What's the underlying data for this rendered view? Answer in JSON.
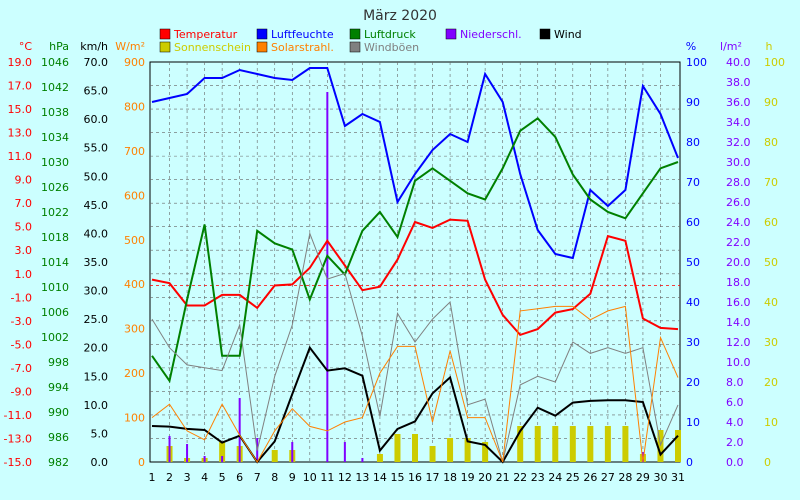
{
  "chart_data": {
    "type": "line",
    "title": "März 2020",
    "x": [
      1,
      2,
      3,
      4,
      5,
      6,
      7,
      8,
      9,
      10,
      11,
      12,
      13,
      14,
      15,
      16,
      17,
      18,
      19,
      20,
      21,
      22,
      23,
      24,
      25,
      26,
      27,
      28,
      29,
      30,
      31
    ],
    "axes": [
      {
        "id": "temp",
        "unit": "°C",
        "color": "#ff0000",
        "min": -15.0,
        "max": 19.0,
        "ticks": [
          "19.0",
          "17.0",
          "15.0",
          "13.0",
          "11.0",
          "9.0",
          "7.0",
          "5.0",
          "3.0",
          "1.0",
          "-1.0",
          "-3.0",
          "-5.0",
          "-7.0",
          "-9.0",
          "-11.0",
          "-13.0",
          "-15.0"
        ]
      },
      {
        "id": "pressure",
        "unit": "hPa",
        "color": "#008000",
        "min": 982,
        "max": 1046,
        "ticks": [
          "1046",
          "1042",
          "1038",
          "1034",
          "1030",
          "1026",
          "1022",
          "1018",
          "1014",
          "1010",
          "1006",
          "1002",
          "998",
          "994",
          "990",
          "986",
          "982"
        ]
      },
      {
        "id": "wind",
        "unit": "km/h",
        "color": "#000000",
        "min": 0.0,
        "max": 70.0,
        "ticks": [
          "70.0",
          "65.0",
          "60.0",
          "55.0",
          "50.0",
          "45.0",
          "40.0",
          "35.0",
          "30.0",
          "25.0",
          "20.0",
          "15.0",
          "10.0",
          "5.0",
          "0.0"
        ]
      },
      {
        "id": "solar",
        "unit": "W/m²",
        "color": "#ff8000",
        "min": 0,
        "max": 900,
        "ticks": [
          "900",
          "800",
          "700",
          "600",
          "500",
          "400",
          "300",
          "200",
          "100",
          "0"
        ]
      },
      {
        "id": "humidity",
        "unit": "%",
        "color": "#0000ff",
        "min": 0,
        "max": 100,
        "ticks": [
          "100",
          "90",
          "80",
          "70",
          "60",
          "50",
          "40",
          "30",
          "20",
          "10",
          "0"
        ]
      },
      {
        "id": "rain",
        "unit": "l/m²",
        "color": "#8000ff",
        "min": 0.0,
        "max": 40.0,
        "ticks": [
          "40.0",
          "38.0",
          "36.0",
          "34.0",
          "32.0",
          "30.0",
          "28.0",
          "26.0",
          "24.0",
          "22.0",
          "20.0",
          "18.0",
          "16.0",
          "14.0",
          "12.0",
          "10.0",
          "8.0",
          "6.0",
          "4.0",
          "2.0",
          "0.0"
        ]
      },
      {
        "id": "sun",
        "unit": "h",
        "color": "#cccc00",
        "min": 0,
        "max": 100,
        "ticks": [
          "100",
          "90",
          "80",
          "70",
          "60",
          "50",
          "40",
          "30",
          "20",
          "10",
          "0"
        ]
      }
    ],
    "legend": [
      {
        "label": "Temperatur",
        "color": "#ff0000"
      },
      {
        "label": "Luftfeuchte",
        "color": "#0000ff"
      },
      {
        "label": "Luftdruck",
        "color": "#008000"
      },
      {
        "label": "Niederschl.",
        "color": "#8000ff"
      },
      {
        "label": "Wind",
        "color": "#000000"
      },
      {
        "label": "Sonnenschein",
        "color": "#cccc00"
      },
      {
        "label": "Solarstrahl.",
        "color": "#ff8000"
      },
      {
        "label": "Windböen",
        "color": "#808080"
      }
    ],
    "series": [
      {
        "name": "Temperatur",
        "axis": "temp",
        "color": "#ff0000",
        "style": "line",
        "width": 2,
        "values": [
          0.5,
          0.2,
          -1.7,
          -1.7,
          -0.8,
          -0.8,
          -1.9,
          0.0,
          0.1,
          1.5,
          3.8,
          1.7,
          -0.4,
          -0.1,
          2.2,
          5.4,
          4.9,
          5.6,
          5.5,
          0.5,
          -2.5,
          -4.2,
          -3.7,
          -2.3,
          -2.0,
          -0.7,
          4.2,
          3.8,
          -2.8,
          -3.6,
          -3.7
        ]
      },
      {
        "name": "Luftfeuchte",
        "axis": "humidity",
        "color": "#0000ff",
        "style": "line",
        "width": 2,
        "values": [
          90,
          91,
          92,
          96,
          96,
          98,
          97,
          96,
          95.5,
          98.5,
          98.5,
          84,
          87,
          85,
          65,
          72,
          78,
          82,
          80,
          97,
          90,
          72,
          58,
          52,
          51,
          68,
          64,
          68,
          94,
          87,
          76
        ]
      },
      {
        "name": "Luftdruck",
        "axis": "pressure",
        "color": "#008000",
        "style": "line",
        "width": 2,
        "values": [
          999,
          995,
          1008,
          1020,
          999,
          999,
          1019,
          1017,
          1016,
          1008,
          1015,
          1012,
          1019,
          1022,
          1018,
          1027,
          1029,
          1027,
          1025,
          1024,
          1029,
          1035,
          1037,
          1034,
          1028,
          1024,
          1022,
          1021,
          1025,
          1029,
          1030
        ]
      },
      {
        "name": "Wind",
        "axis": "wind",
        "color": "#000000",
        "style": "line",
        "width": 2,
        "values": [
          6.3,
          6.2,
          5.8,
          5.6,
          3.4,
          4.6,
          0.0,
          3.6,
          11.9,
          20.0,
          16.0,
          16.4,
          15.1,
          2.0,
          5.8,
          7.1,
          12.0,
          14.8,
          3.6,
          3.0,
          0.0,
          5.4,
          9.5,
          8.1,
          10.4,
          10.7,
          10.8,
          10.8,
          10.5,
          1.3,
          4.6
        ]
      },
      {
        "name": "Windböen",
        "axis": "wind",
        "color": "#808080",
        "style": "line",
        "width": 1,
        "values": [
          25.0,
          20.0,
          17.0,
          16.5,
          16.0,
          24.0,
          2.0,
          15.0,
          24.0,
          40.0,
          32.0,
          33.0,
          22.0,
          8.0,
          26.0,
          21.0,
          25.0,
          28.0,
          10.0,
          11.0,
          0.0,
          13.5,
          15.0,
          14.0,
          21.0,
          19.0,
          20.0,
          19.0,
          20.0,
          3.0,
          10.0
        ]
      },
      {
        "name": "Solarstrahl.",
        "axis": "solar",
        "color": "#ff8000",
        "style": "line",
        "width": 1,
        "values": [
          100,
          130,
          70,
          50,
          130,
          60,
          0,
          70,
          120,
          80,
          70,
          90,
          100,
          200,
          260,
          260,
          90,
          250,
          100,
          100,
          0,
          340,
          345,
          350,
          350,
          320,
          340,
          350,
          0,
          280,
          190
        ]
      },
      {
        "name": "Sonnenschein",
        "axis": "sun",
        "color": "#cccc00",
        "style": "bar",
        "values": [
          0,
          4,
          1,
          1,
          5,
          4,
          0,
          3,
          3,
          0,
          0,
          0,
          0,
          2,
          7,
          7,
          4,
          6,
          6,
          5,
          0,
          9,
          9,
          9,
          9,
          9,
          9,
          9,
          2,
          8,
          8
        ]
      },
      {
        "name": "Niederschl.",
        "axis": "rain",
        "color": "#8000ff",
        "style": "bar",
        "values": [
          0,
          2.6,
          1.8,
          0.6,
          0.6,
          6.4,
          2.4,
          0,
          2.0,
          0,
          37.0,
          2.0,
          0.4,
          0,
          0,
          0,
          0,
          0,
          0,
          0,
          0,
          0,
          0,
          0,
          0,
          0,
          0,
          0,
          1.0,
          0,
          0
        ]
      }
    ],
    "grid": "dashed",
    "freeze_line": {
      "axis": "temp",
      "value": 0
    }
  }
}
